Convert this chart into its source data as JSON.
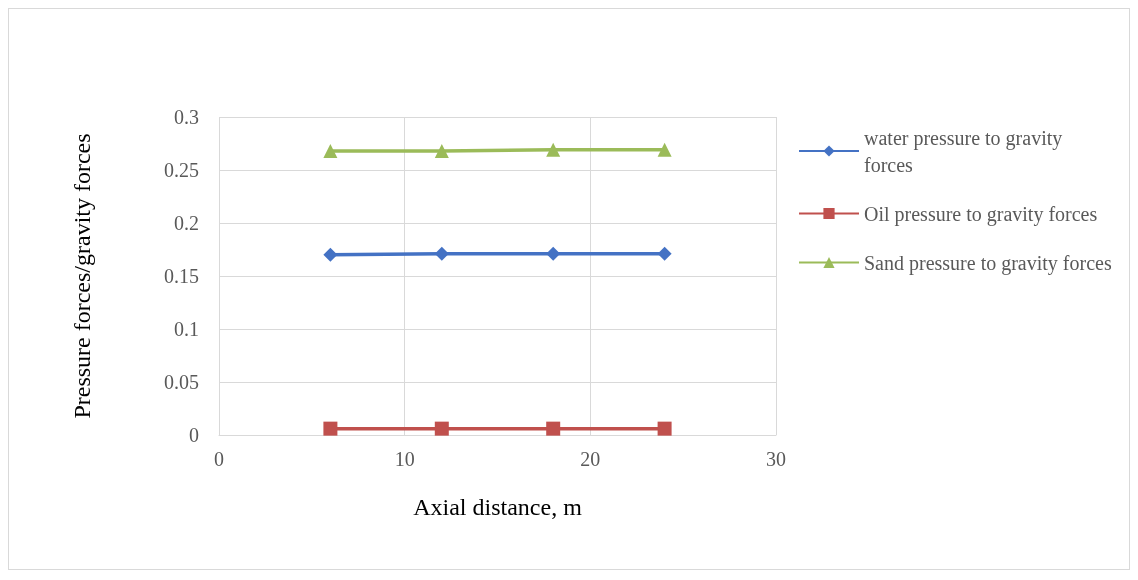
{
  "chart_data": {
    "type": "line",
    "xlabel": "Axial distance, m",
    "ylabel": "Pressure forces/gravity forces",
    "x": [
      6,
      12,
      18,
      24
    ],
    "xlim": [
      0,
      30
    ],
    "xticks": [
      0,
      10,
      20,
      30
    ],
    "ylim": [
      0,
      0.3
    ],
    "yticks": [
      0,
      0.05,
      0.1,
      0.15,
      0.2,
      0.25,
      0.3
    ],
    "grid": true,
    "legend": "right",
    "line_style": "solid",
    "series": [
      {
        "name": "water pressure to gravity forces",
        "color": "#4472c4",
        "marker": "diamond",
        "values": [
          0.17,
          0.171,
          0.171,
          0.171
        ]
      },
      {
        "name": "Oil pressure to gravity forces",
        "color": "#c0504d",
        "marker": "square",
        "values": [
          0.006,
          0.006,
          0.006,
          0.006
        ]
      },
      {
        "name": "Sand pressure to gravity forces",
        "color": "#9bbb59",
        "marker": "triangle",
        "values": [
          0.268,
          0.268,
          0.269,
          0.269
        ]
      }
    ]
  }
}
